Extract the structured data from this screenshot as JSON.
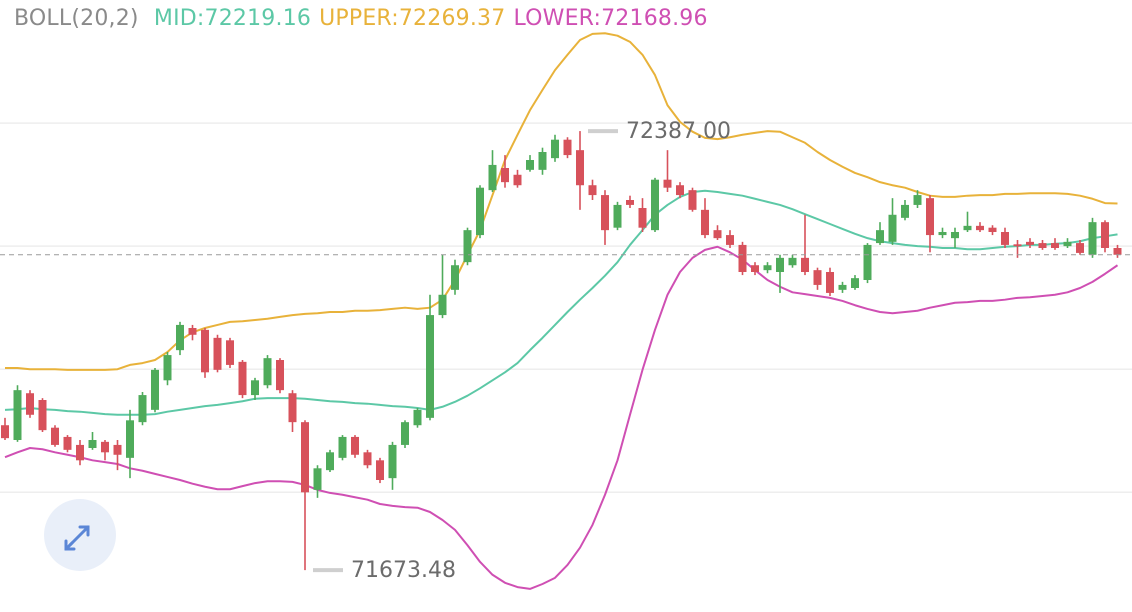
{
  "chart_data": {
    "type": "candlestick",
    "indicator": "BOLL(20,2)",
    "max_label": "72387.00",
    "min_label": "71673.48",
    "up_color": "#4fab5b",
    "down_color": "#d7515b",
    "ylim": [
      71605.5,
      72600
    ],
    "gridlines": [
      71800,
      72000,
      72200,
      72400
    ],
    "open": [
      71909,
      71885,
      71961,
      71950,
      71905,
      71890,
      71877,
      71872,
      71882,
      71877,
      71856,
      71914,
      71934,
      71982,
      72031,
      72067,
      72064,
      72051,
      72047,
      72012,
      71958,
      71974,
      72015,
      71961,
      71914,
      71804,
      71836,
      71856,
      71890,
      71865,
      71852,
      71823,
      71877,
      71909,
      71921,
      72088,
      72129,
      72174,
      72218,
      72291,
      72327,
      72316,
      72324,
      72324,
      72343,
      72373,
      72356,
      72299,
      72283,
      72230,
      72275,
      72262,
      72226,
      72308,
      72299,
      72291,
      72259,
      72226,
      72218,
      72202,
      72169,
      72161,
      72158,
      72169,
      72181,
      72161,
      72158,
      72129,
      72132,
      72145,
      72205,
      72207,
      72246,
      72267,
      72278,
      72218,
      72213,
      72226,
      72233,
      72230,
      72223,
      72203,
      72207,
      72205,
      72205,
      72200,
      72205,
      72186,
      72239,
      72197
    ],
    "high": [
      71921,
      71974,
      71966,
      71953,
      71909,
      71893,
      71885,
      71898,
      71885,
      71885,
      71934,
      71963,
      72002,
      72028,
      72077,
      72072,
      72067,
      72056,
      72051,
      72015,
      71986,
      72023,
      72018,
      71966,
      71917,
      71844,
      71869,
      71893,
      71893,
      71869,
      71856,
      71882,
      71917,
      71937,
      72121,
      72186,
      72178,
      72230,
      72299,
      72356,
      72348,
      72324,
      72348,
      72360,
      72381,
      72377,
      72387,
      72308,
      72291,
      72272,
      72282,
      72278,
      72311,
      72356,
      72304,
      72295,
      72278,
      72234,
      72226,
      72207,
      72174,
      72174,
      72186,
      72186,
      72251,
      72165,
      72165,
      72142,
      72153,
      72205,
      72239,
      72278,
      72275,
      72291,
      72283,
      72230,
      72230,
      72256,
      72239,
      72234,
      72230,
      72210,
      72213,
      72210,
      72213,
      72213,
      72210,
      72246,
      72242,
      72202
    ],
    "low": [
      71885,
      71882,
      71921,
      71898,
      71874,
      71865,
      71844,
      71869,
      71852,
      71836,
      71823,
      71909,
      71930,
      71974,
      72023,
      72047,
      71986,
      71995,
      72002,
      71953,
      71950,
      71969,
      71961,
      71898,
      71673.48,
      71791,
      71833,
      71852,
      71856,
      71839,
      71815,
      71804,
      71872,
      71905,
      71917,
      72083,
      72121,
      72169,
      72213,
      72288,
      72295,
      72295,
      72321,
      72316,
      72337,
      72343,
      72259,
      72275,
      72202,
      72226,
      72262,
      72223,
      72223,
      72288,
      72278,
      72256,
      72213,
      72210,
      72197,
      72153,
      72153,
      72156,
      72124,
      72165,
      72153,
      72129,
      72119,
      72124,
      72129,
      72140,
      72202,
      72202,
      72242,
      72262,
      72190,
      72213,
      72197,
      72223,
      72223,
      72218,
      72197,
      72181,
      72197,
      72194,
      72194,
      72197,
      72186,
      72181,
      72190,
      72181
    ],
    "close": [
      71888,
      71966,
      71926,
      71901,
      71877,
      71869,
      71852,
      71885,
      71865,
      71861,
      71917,
      71958,
      71999,
      72023,
      72072,
      72056,
      71995,
      71999,
      72007,
      71958,
      71982,
      72018,
      71966,
      71914,
      71800,
      71839,
      71865,
      71890,
      71861,
      71844,
      71820,
      71877,
      71914,
      71934,
      72088,
      72121,
      72169,
      72226,
      72295,
      72332,
      72304,
      72299,
      72340,
      72353,
      72373,
      72348,
      72299,
      72283,
      72226,
      72267,
      72267,
      72230,
      72308,
      72295,
      72283,
      72259,
      72218,
      72213,
      72202,
      72158,
      72158,
      72169,
      72181,
      72181,
      72158,
      72137,
      72124,
      72137,
      72148,
      72202,
      72226,
      72251,
      72267,
      72283,
      72218,
      72223,
      72223,
      72233,
      72226,
      72223,
      72202,
      72200,
      72202,
      72197,
      72197,
      72207,
      72189,
      72239,
      72197,
      72186
    ],
    "series": [
      {
        "name": "MID:72219.16",
        "color": "#5cc8a6",
        "values": [
          71934,
          71935,
          71937,
          71935,
          71934,
          71932,
          71931,
          71929,
          71927,
          71926,
          71926,
          71926,
          71927,
          71931,
          71934,
          71937,
          71940,
          71942,
          71945,
          71948,
          71952,
          71953,
          71953,
          71953,
          71952,
          71950,
          71948,
          71947,
          71945,
          71944,
          71942,
          71940,
          71939,
          71937,
          71934,
          71939,
          71947,
          71957,
          71969,
          71982,
          71995,
          72010,
          72031,
          72051,
          72072,
          72093,
          72113,
          72132,
          72152,
          72174,
          72202,
          72226,
          72251,
          72267,
          72280,
          72288,
          72290,
          72288,
          72285,
          72282,
          72277,
          72272,
          72267,
          72260,
          72252,
          72244,
          72236,
          72228,
          72220,
          72213,
          72208,
          72205,
          72202,
          72200,
          72199,
          72197,
          72197,
          72195,
          72195,
          72197,
          72199,
          72200,
          72202,
          72202,
          72204,
          72205,
          72208,
          72213,
          72216,
          72219.16
        ]
      },
      {
        "name": "UPPER:72269.37",
        "color": "#e8b23a",
        "values": [
          72002,
          72002,
          72000,
          72000,
          72000,
          71999,
          71999,
          71999,
          71999,
          72000,
          72007,
          72010,
          72015,
          72028,
          72047,
          72060,
          72067,
          72072,
          72077,
          72078,
          72080,
          72082,
          72085,
          72088,
          72090,
          72091,
          72093,
          72093,
          72095,
          72095,
          72096,
          72098,
          72100,
          72098,
          72100,
          72113,
          72145,
          72186,
          72226,
          72283,
          72340,
          72381,
          72421,
          72454,
          72486,
          72511,
          72535,
          72545,
          72546,
          72542,
          72532,
          72511,
          72478,
          72429,
          72402,
          72386,
          72376,
          72374,
          72377,
          72381,
          72384,
          72387,
          72386,
          72377,
          72368,
          72353,
          72340,
          72329,
          72319,
          72312,
          72304,
          72299,
          72295,
          72288,
          72282,
          72280,
          72280,
          72282,
          72283,
          72283,
          72285,
          72285,
          72286,
          72286,
          72286,
          72285,
          72282,
          72277,
          72270,
          72269.37
        ]
      },
      {
        "name": "LOWER:72168.96",
        "color": "#cf4fb3",
        "values": [
          71857,
          71865,
          71872,
          71870,
          71865,
          71861,
          71857,
          71852,
          71849,
          71846,
          71839,
          71835,
          71830,
          71825,
          71820,
          71814,
          71809,
          71805,
          71805,
          71810,
          71815,
          71818,
          71818,
          71817,
          71812,
          71804,
          71799,
          71796,
          71792,
          71788,
          71781,
          71778,
          71776,
          71775,
          71768,
          71755,
          71739,
          71714,
          71687,
          71666,
          71653,
          71646,
          71643,
          71651,
          71661,
          71682,
          71710,
          71747,
          71796,
          71852,
          71926,
          71999,
          72064,
          72121,
          72158,
          72181,
          72194,
          72199,
          72190,
          72178,
          72161,
          72145,
          72134,
          72125,
          72122,
          72119,
          72116,
          72111,
          72104,
          72098,
          72093,
          72091,
          72093,
          72095,
          72100,
          72104,
          72108,
          72109,
          72111,
          72111,
          72113,
          72116,
          72117,
          72119,
          72121,
          72125,
          72132,
          72142,
          72155,
          72168.96
        ]
      }
    ]
  }
}
